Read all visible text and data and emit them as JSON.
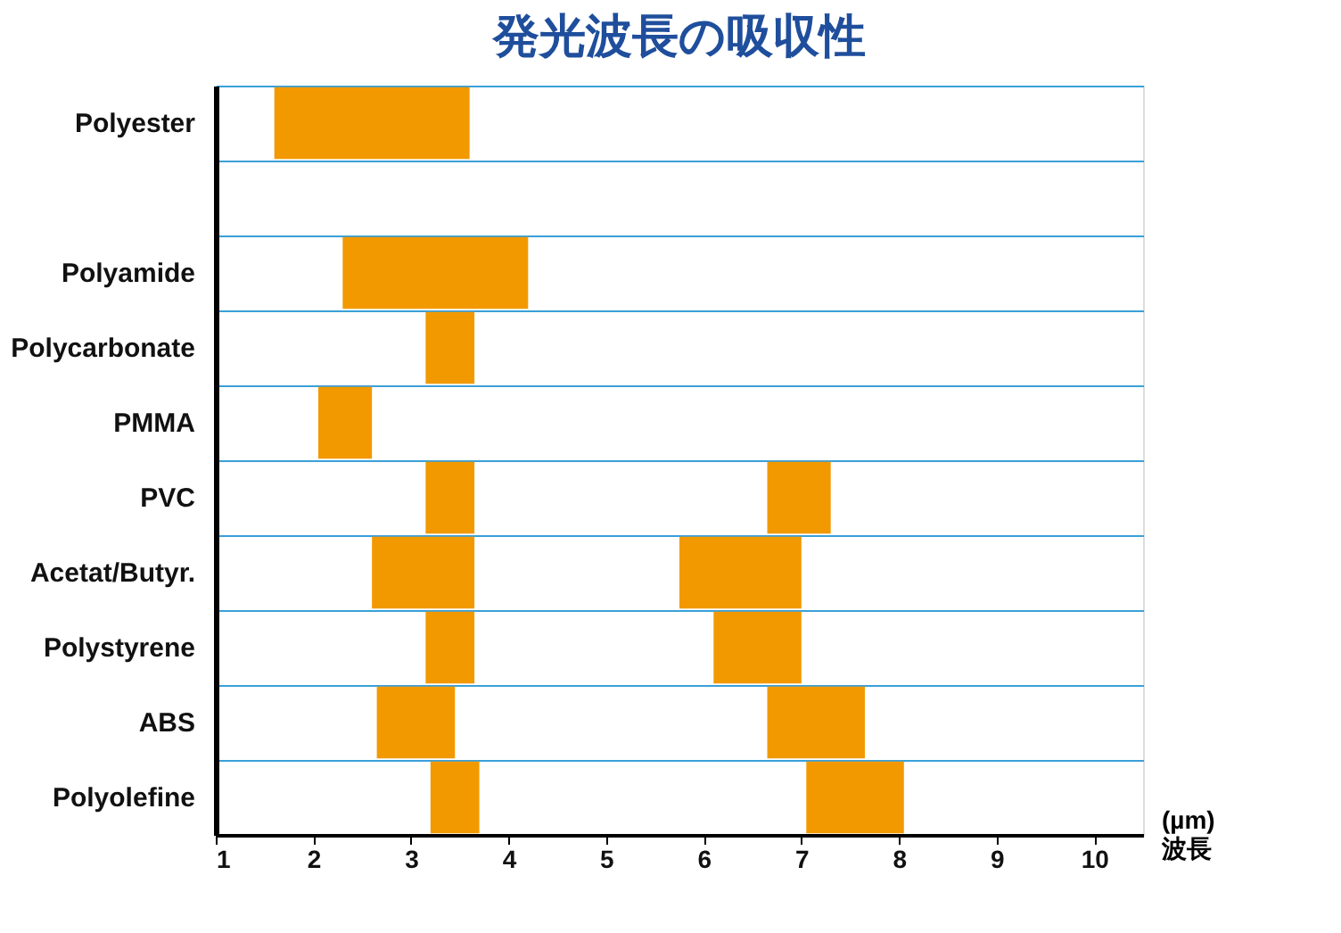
{
  "chart_data": {
    "type": "bar",
    "orientation": "horizontal",
    "title": "発光波長の吸収性",
    "xlabel": "(µm)\n波長",
    "categories": [
      "Polyester",
      null,
      "Polyamide",
      "Polycarbonate",
      "PMMA",
      "PVC",
      "Acetat/Butyr.",
      "Polystyrene",
      "ABS",
      "Polyolefine"
    ],
    "series": [
      {
        "color": "#f29900",
        "base": [
          1.6,
          null,
          2.3,
          3.15,
          2.05,
          3.15,
          2.6,
          3.15,
          2.65,
          3.2
        ],
        "values": [
          2.0,
          null,
          1.9,
          0.5,
          0.55,
          0.5,
          1.05,
          0.5,
          0.8,
          0.5
        ]
      },
      {
        "color": "#f29900",
        "base": [
          null,
          null,
          null,
          null,
          null,
          6.65,
          5.75,
          6.1,
          6.65,
          7.05
        ],
        "values": [
          null,
          null,
          null,
          null,
          null,
          0.65,
          1.25,
          0.9,
          1.0,
          1.0
        ]
      }
    ],
    "xlim": [
      1,
      10.5
    ],
    "xticks": [
      1,
      2,
      3,
      4,
      5,
      6,
      7,
      8,
      9,
      10
    ],
    "grid": "y",
    "legend": false
  }
}
